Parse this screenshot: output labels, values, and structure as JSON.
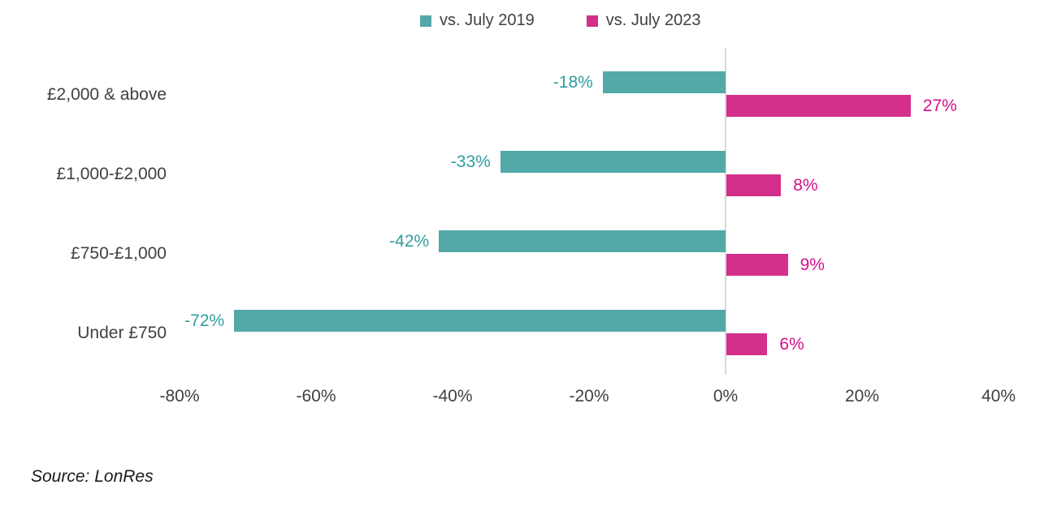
{
  "legend": {
    "items": [
      {
        "label": "vs. July 2019",
        "color": "#52A9A7"
      },
      {
        "label": "vs. July 2023",
        "color": "#D42F8B"
      }
    ]
  },
  "chart_data": {
    "type": "bar",
    "orientation": "horizontal",
    "categories": [
      "£2,000 & above",
      "£1,000-£2,000",
      "£750-£1,000",
      "Under £750"
    ],
    "series": [
      {
        "name": "vs. July 2019",
        "color": "#52A9A7",
        "label_color": "#2F9EA0",
        "values": [
          -18,
          -33,
          -42,
          -72
        ],
        "labels": [
          "-18%",
          "-33%",
          "-42%",
          "-72%"
        ]
      },
      {
        "name": "vs. July 2023",
        "color": "#D42F8B",
        "label_color": "#D60E8B",
        "values": [
          27,
          8,
          9,
          6
        ],
        "labels": [
          "27%",
          "8%",
          "9%",
          "6%"
        ]
      }
    ],
    "xticks": {
      "values": [
        -80,
        -60,
        -40,
        -20,
        0,
        20,
        40
      ],
      "labels": [
        "-80%",
        "-60%",
        "-40%",
        "-20%",
        "0%",
        "20%",
        "40%"
      ]
    },
    "xlim": [
      -90,
      45
    ],
    "grid": false,
    "legend_position": "top",
    "axis_line_color": "#D9D9D9",
    "text_color": "#404040"
  },
  "source": "Source: LonRes"
}
